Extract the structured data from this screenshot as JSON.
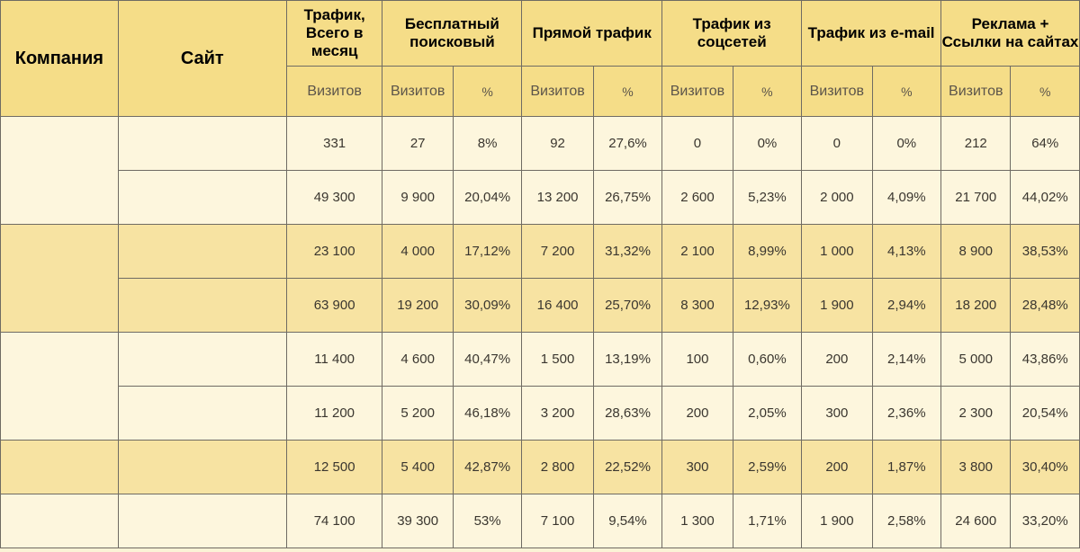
{
  "header": {
    "company": "Компания",
    "site": "Сайт",
    "total": "Трафик, Всего в месяц",
    "search": "Бесплатный поисковый",
    "direct": "Прямой трафик",
    "social": "Трафик из соцсетей",
    "email": "Трафик из e-mail",
    "ads": "Реклама + Ссылки на сайтах",
    "visits_total": "Визитов",
    "visits": "Визитов",
    "percent": "%"
  },
  "rows": [
    {
      "total": "331",
      "search_v": "27",
      "search_p": "8%",
      "direct_v": "92",
      "direct_p": "27,6%",
      "social_v": "0",
      "social_p": "0%",
      "email_v": "0",
      "email_p": "0%",
      "ads_v": "212",
      "ads_p": "64%"
    },
    {
      "total": "49 300",
      "search_v": "9 900",
      "search_p": "20,04%",
      "direct_v": "13 200",
      "direct_p": "26,75%",
      "social_v": "2 600",
      "social_p": "5,23%",
      "email_v": "2 000",
      "email_p": "4,09%",
      "ads_v": "21 700",
      "ads_p": "44,02%"
    },
    {
      "total": "23 100",
      "search_v": "4 000",
      "search_p": "17,12%",
      "direct_v": "7 200",
      "direct_p": "31,32%",
      "social_v": "2 100",
      "social_p": "8,99%",
      "email_v": "1 000",
      "email_p": "4,13%",
      "ads_v": "8 900",
      "ads_p": "38,53%"
    },
    {
      "total": "63 900",
      "search_v": "19 200",
      "search_p": "30,09%",
      "direct_v": "16 400",
      "direct_p": "25,70%",
      "social_v": "8 300",
      "social_p": "12,93%",
      "email_v": "1 900",
      "email_p": "2,94%",
      "ads_v": "18 200",
      "ads_p": "28,48%"
    },
    {
      "total": "11 400",
      "search_v": "4 600",
      "search_p": "40,47%",
      "direct_v": "1 500",
      "direct_p": "13,19%",
      "social_v": "100",
      "social_p": "0,60%",
      "email_v": "200",
      "email_p": "2,14%",
      "ads_v": "5 000",
      "ads_p": "43,86%"
    },
    {
      "total": "11 200",
      "search_v": "5 200",
      "search_p": "46,18%",
      "direct_v": "3 200",
      "direct_p": "28,63%",
      "social_v": "200",
      "social_p": "2,05%",
      "email_v": "300",
      "email_p": "2,36%",
      "ads_v": "2 300",
      "ads_p": "20,54%"
    },
    {
      "total": "12 500",
      "search_v": "5 400",
      "search_p": "42,87%",
      "direct_v": "2 800",
      "direct_p": "22,52%",
      "social_v": "300",
      "social_p": "2,59%",
      "email_v": "200",
      "email_p": "1,87%",
      "ads_v": "3 800",
      "ads_p": "30,40%"
    },
    {
      "total": "74 100",
      "search_v": "39 300",
      "search_p": "53%",
      "direct_v": "7 100",
      "direct_p": "9,54%",
      "social_v": "1 300",
      "social_p": "1,71%",
      "email_v": "1 900",
      "email_p": "2,58%",
      "ads_v": "24 600",
      "ads_p": "33,20%"
    }
  ]
}
